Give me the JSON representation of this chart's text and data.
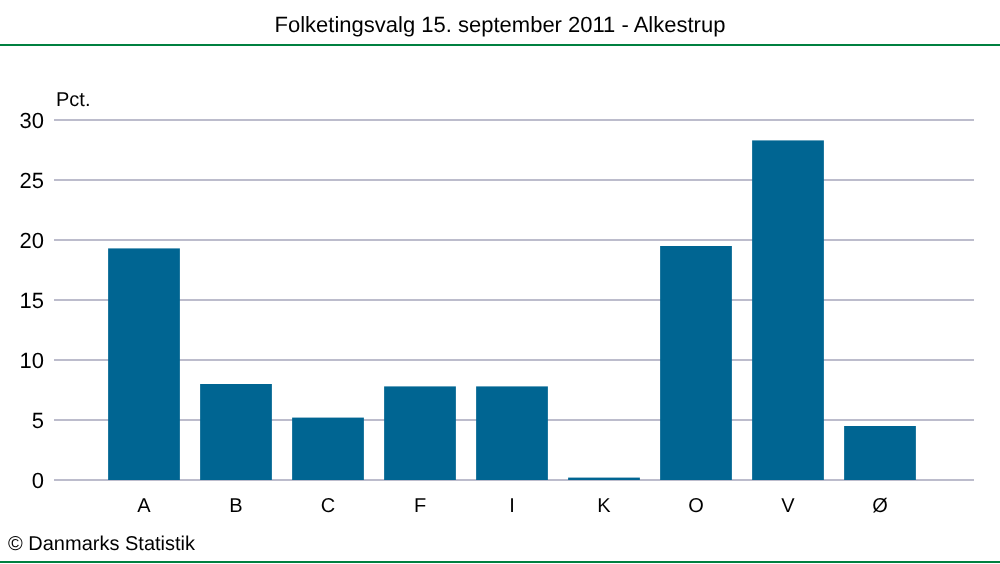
{
  "chart_data": {
    "type": "bar",
    "title": "Folketingsvalg 15. september 2011 - Alkestrup",
    "ylabel": "Pct.",
    "categories": [
      "A",
      "B",
      "C",
      "F",
      "I",
      "K",
      "O",
      "V",
      "Ø"
    ],
    "values": [
      19.3,
      8.0,
      5.2,
      7.8,
      7.8,
      0.2,
      19.5,
      28.3,
      4.5
    ],
    "color": "#006592",
    "ylim": [
      0,
      30
    ],
    "yticks": [
      0,
      5,
      10,
      15,
      20,
      25,
      30
    ],
    "grid": "y",
    "annotations": [
      "© Danmarks Statistik"
    ]
  }
}
